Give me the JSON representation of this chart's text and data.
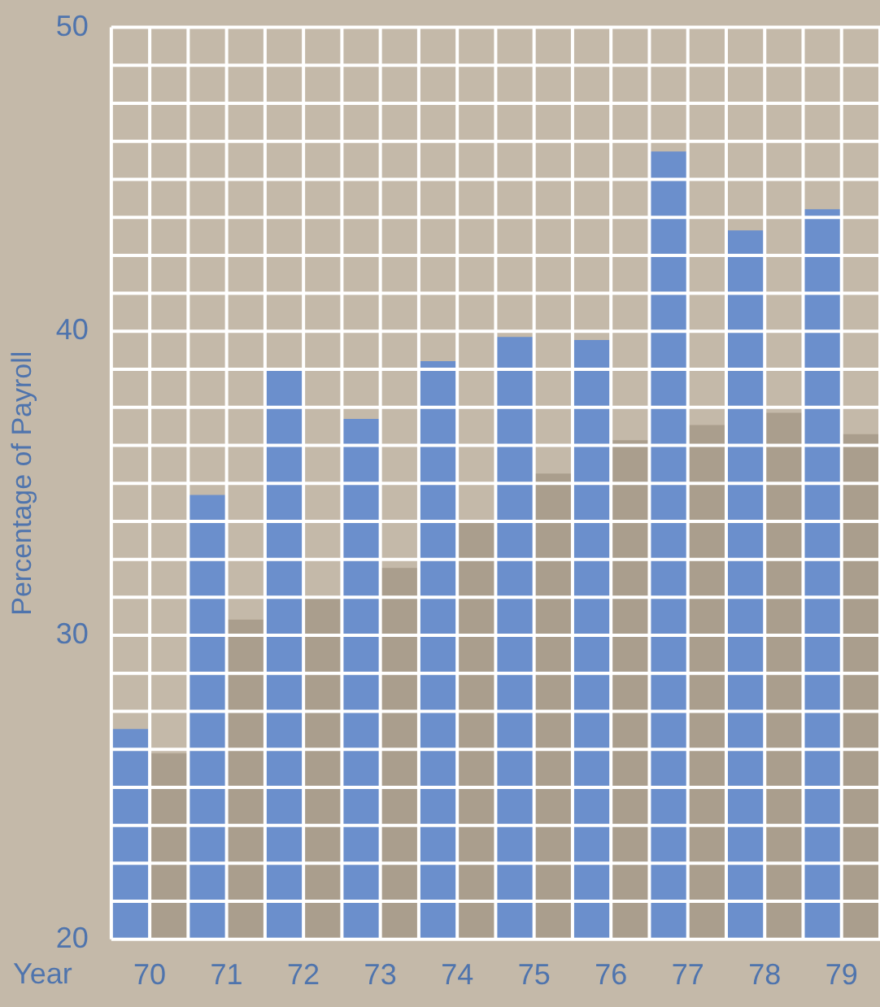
{
  "chart_data": {
    "type": "bar",
    "ylabel": "Percentage of Payroll",
    "xlabel": "Year",
    "categories": [
      "70",
      "71",
      "72",
      "73",
      "74",
      "75",
      "76",
      "77",
      "78",
      "79"
    ],
    "series": [
      {
        "color": "#6b8fcc",
        "values": [
          26.9,
          34.6,
          38.7,
          37.1,
          39.0,
          39.8,
          39.7,
          45.9,
          43.3,
          44.0
        ]
      },
      {
        "color": "#aa9e8d",
        "values": [
          26.1,
          30.5,
          31.2,
          32.2,
          33.7,
          35.3,
          36.4,
          36.9,
          37.3,
          36.6
        ]
      }
    ],
    "ylim": [
      20,
      50
    ],
    "yticks": [
      20,
      {
        "value": 21.25,
        "label": null
      },
      {
        "value": 22.5,
        "label": null
      },
      {
        "value": 23.75,
        "label": null
      },
      {
        "value": 25,
        "label": null
      },
      {
        "value": 26.25,
        "label": null
      },
      {
        "value": 27.5,
        "label": null
      },
      {
        "value": 28.75,
        "label": null
      },
      30,
      {
        "value": 31.25,
        "label": null
      },
      {
        "value": 32.5,
        "label": null
      },
      {
        "value": 33.75,
        "label": null
      },
      {
        "value": 35,
        "label": null
      },
      {
        "value": 36.25,
        "label": null
      },
      {
        "value": 37.5,
        "label": null
      },
      {
        "value": 38.75,
        "label": null
      },
      40,
      {
        "value": 41.25,
        "label": null
      },
      {
        "value": 42.5,
        "label": null
      },
      {
        "value": 43.75,
        "label": null
      },
      {
        "value": 45,
        "label": null
      },
      {
        "value": 46.25,
        "label": null
      },
      {
        "value": 47.5,
        "label": null
      },
      {
        "value": 48.75,
        "label": null
      },
      50
    ],
    "grid": true,
    "legend": false
  }
}
